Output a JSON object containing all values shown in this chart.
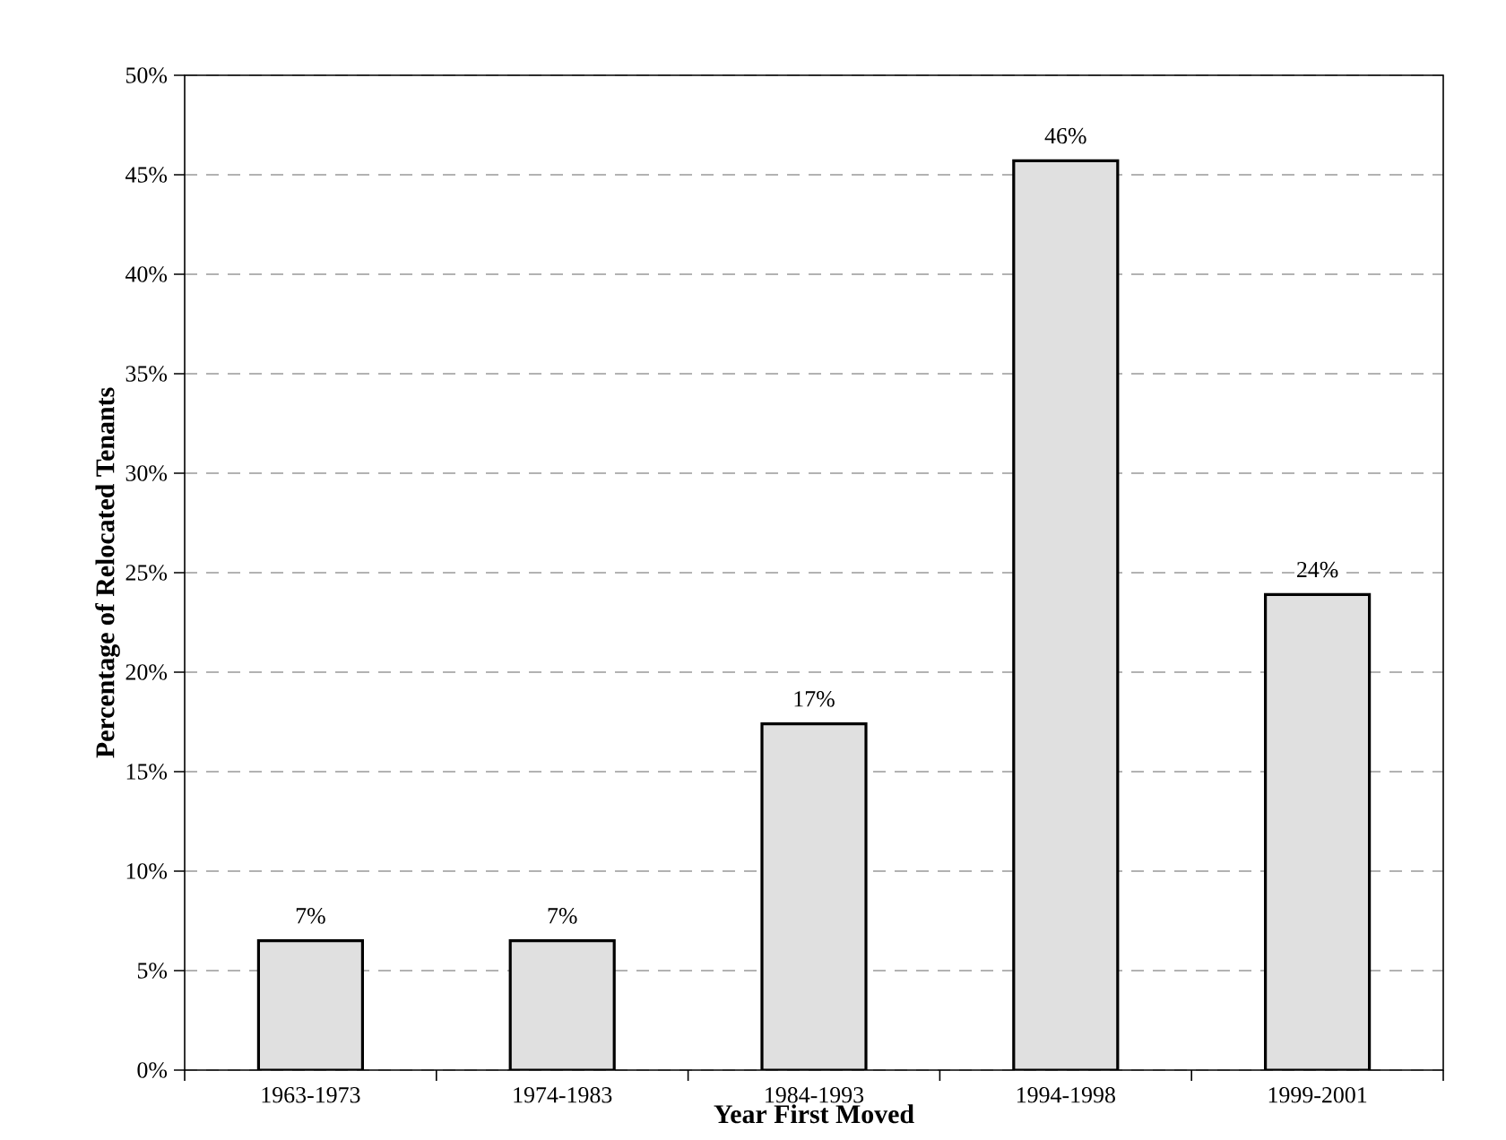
{
  "chart_data": {
    "type": "bar",
    "xlabel": "Year First  Moved",
    "ylabel": "Percentage of Relocated Tenants",
    "categories": [
      "1963-1973",
      "1974-1983",
      "1984-1993",
      "1994-1998",
      "1999-2001"
    ],
    "values": [
      6.5,
      6.5,
      17.4,
      45.7,
      23.9
    ],
    "value_labels": [
      "7%",
      "7%",
      "17%",
      "46%",
      "24%"
    ],
    "color": "#e0e0e0",
    "ylim": [
      0,
      50
    ],
    "yticks": [
      {
        "value": 0,
        "label": "0%"
      },
      {
        "value": 5,
        "label": "5%"
      },
      {
        "value": 10,
        "label": "10%"
      },
      {
        "value": 15,
        "label": "15%"
      },
      {
        "value": 20,
        "label": "20%"
      },
      {
        "value": 25,
        "label": "25%"
      },
      {
        "value": 30,
        "label": "30%"
      },
      {
        "value": 35,
        "label": "35%"
      },
      {
        "value": 40,
        "label": "40%"
      },
      {
        "value": 45,
        "label": "45%"
      },
      {
        "value": 50,
        "label": "50%"
      }
    ],
    "grid": "y"
  }
}
